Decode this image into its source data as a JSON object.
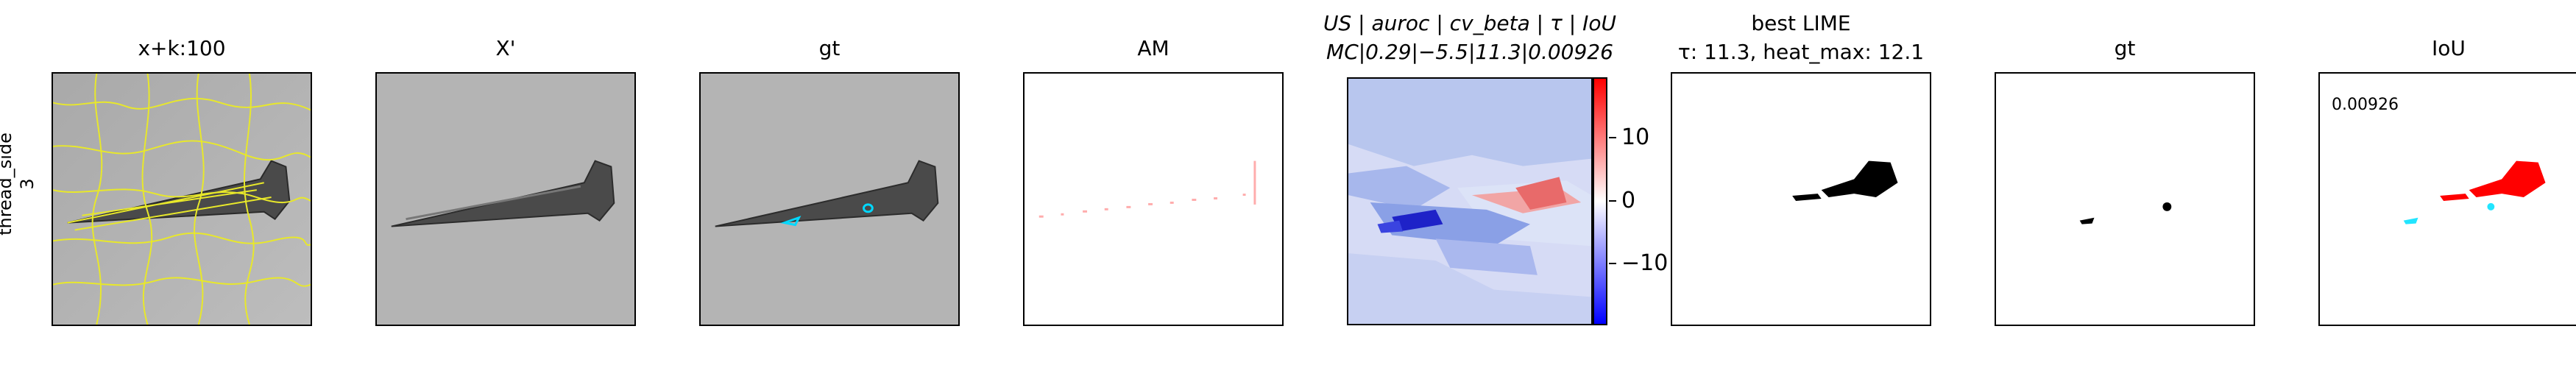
{
  "row_label": [
    "thread_side",
    "3"
  ],
  "panels": [
    {
      "title": "x+k:100"
    },
    {
      "title": "X'"
    },
    {
      "title": "gt"
    },
    {
      "title": "AM"
    },
    {
      "title_line1": "US | auroc | cv_beta | τ | IoU",
      "title_line2": "MC|0.29|−5.5|11.3|0.00926"
    },
    {
      "title_line1": "best LIME",
      "title_line2": "τ: 11.3, heat_max: 12.1"
    },
    {
      "title": "gt"
    },
    {
      "title": "IoU",
      "annotation": "0.00926"
    }
  ],
  "colorbar": {
    "ticks": [
      "10",
      "0",
      "−10"
    ],
    "colors": {
      "top": "#ff0000",
      "mid": "#ffffff",
      "bottom": "#0000ff"
    }
  },
  "colors": {
    "segment_lines": "#e8e82a",
    "gt_marks": "#00d8ff",
    "iou_red": "#ff0000",
    "iou_cyan": "#22e5ff"
  }
}
